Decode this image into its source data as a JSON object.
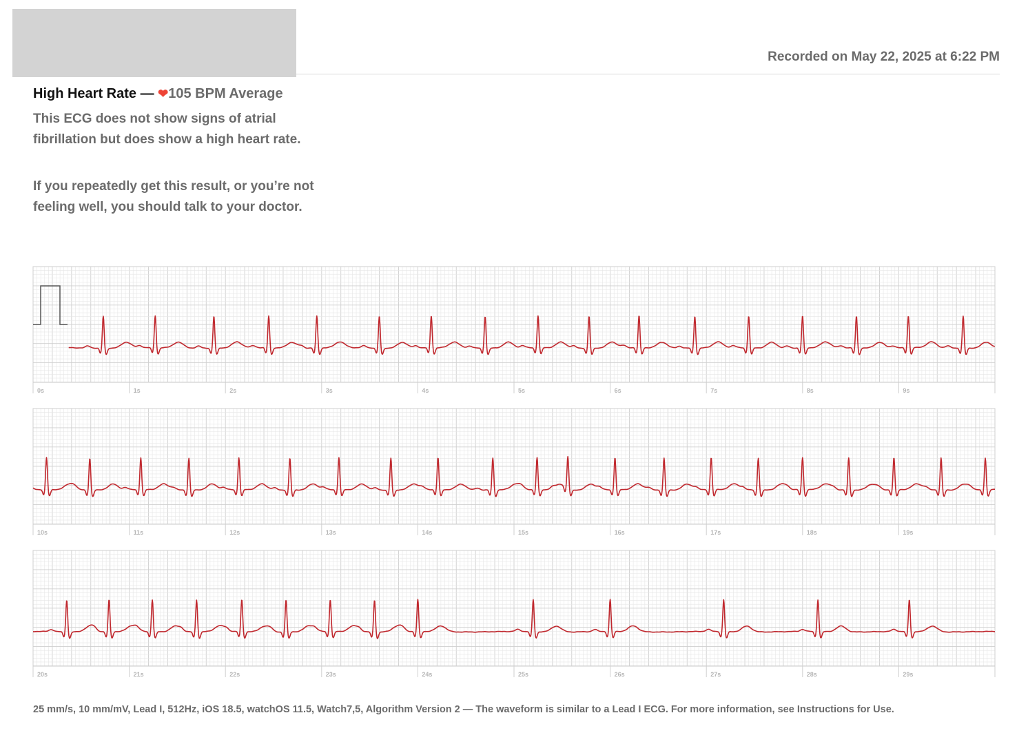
{
  "header": {
    "recorded": "Recorded on May 22, 2025 at 6:22 PM"
  },
  "summary": {
    "classification": "High Heart Rate",
    "separator": " — ",
    "heart_icon": "heart-icon",
    "heart_glyph": "❤",
    "average": "105 BPM Average",
    "paragraph_1": "This ECG does not show signs of atrial fibrillation but does show a high heart rate.",
    "paragraph_2": "If you repeatedly get this result, or you’re not feeling well, you should talk to your doctor."
  },
  "colors": {
    "trace": "#c0282e",
    "grid_minor": "#e6e6e6",
    "grid_major": "#cfcfcf",
    "heart": "#ee4436"
  },
  "chart_data": {
    "type": "line",
    "title": "Lead I ECG",
    "heart_rate_bpm": 105,
    "seconds_per_strip": 10,
    "strips": [
      {
        "start_s": 0,
        "tick_labels": [
          "0s",
          "1s",
          "2s",
          "3s",
          "4s",
          "5s",
          "6s",
          "7s",
          "8s",
          "9s"
        ],
        "r_peak_times_s": [
          0.73,
          1.27,
          1.88,
          2.45,
          2.95,
          3.6,
          4.14,
          4.7,
          5.25,
          5.78,
          6.3,
          6.88,
          7.44,
          8.0,
          8.56,
          9.1,
          9.67
        ]
      },
      {
        "start_s": 10,
        "tick_labels": [
          "10s",
          "11s",
          "12s",
          "13s",
          "14s",
          "15s",
          "16s",
          "17s",
          "18s",
          "19s"
        ],
        "r_peak_times_s": [
          10.14,
          10.59,
          11.12,
          11.62,
          12.14,
          12.67,
          13.18,
          13.72,
          14.21,
          14.78,
          15.24,
          15.56,
          16.05,
          16.56,
          17.05,
          17.54,
          18.0,
          18.48,
          18.95,
          19.44,
          19.9
        ]
      },
      {
        "start_s": 20,
        "tick_labels": [
          "20s",
          "21s",
          "22s",
          "23s",
          "24s",
          "25s",
          "26s",
          "27s",
          "28s",
          "29s"
        ],
        "r_peak_times_s": [
          20.35,
          20.79,
          21.24,
          21.7,
          22.17,
          22.63,
          23.09,
          23.55,
          24.0,
          25.2,
          26.0,
          27.18,
          28.16,
          29.11
        ]
      }
    ],
    "calibration": "1 mV",
    "speed": "25 mm/s",
    "gain": "10 mm/mV"
  },
  "footer": {
    "text": "25 mm/s, 10 mm/mV, Lead I, 512Hz, iOS 18.5, watchOS 11.5, Watch7,5, Algorithm Version 2 — The waveform is similar to a Lead I ECG. For more information, see Instructions for Use."
  }
}
